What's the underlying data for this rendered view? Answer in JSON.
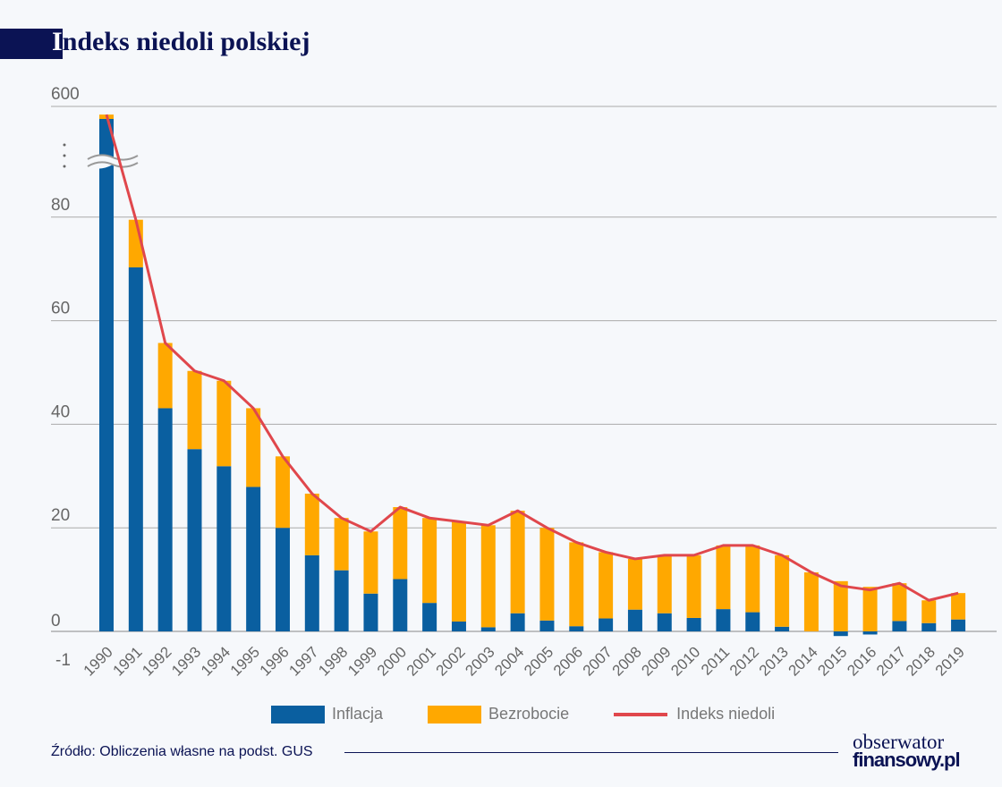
{
  "title_first": "I",
  "title_rest": "ndeks niedoli polskiej",
  "chart_data": {
    "type": "bar",
    "title": "Indeks niedoli polskiej",
    "stacked": true,
    "y_ticks": [
      "600",
      "80",
      "60",
      "40",
      "20",
      "0",
      "-1"
    ],
    "y_break": "between 80 and 600",
    "categories": [
      "1990",
      "1991",
      "1992",
      "1993",
      "1994",
      "1995",
      "1996",
      "1997",
      "1998",
      "1999",
      "2000",
      "2001",
      "2002",
      "2003",
      "2004",
      "2005",
      "2006",
      "2007",
      "2008",
      "2009",
      "2010",
      "2011",
      "2012",
      "2013",
      "2014",
      "2015",
      "2016",
      "2017",
      "2018",
      "2019"
    ],
    "series": [
      {
        "name": "Inflacja",
        "type": "bar",
        "color": "#0a5fa0",
        "values": [
          585.8,
          70.3,
          43.1,
          35.2,
          31.9,
          27.9,
          20.0,
          14.7,
          11.8,
          7.3,
          10.1,
          5.5,
          1.9,
          0.8,
          3.5,
          2.1,
          1.0,
          2.5,
          4.2,
          3.5,
          2.6,
          4.3,
          3.7,
          0.9,
          0.0,
          -0.9,
          -0.6,
          2.0,
          1.6,
          2.3
        ]
      },
      {
        "name": "Bezrobocie",
        "type": "bar",
        "color": "#ffa800",
        "values": [
          6.5,
          9.2,
          12.6,
          15.1,
          16.5,
          15.2,
          13.8,
          11.9,
          10.1,
          12.0,
          13.9,
          16.4,
          19.3,
          19.7,
          19.8,
          17.9,
          16.2,
          12.8,
          9.8,
          11.2,
          12.1,
          12.3,
          12.9,
          13.8,
          11.4,
          9.7,
          8.6,
          7.3,
          4.4,
          5.1
        ]
      },
      {
        "name": "Indeks niedoli",
        "type": "line",
        "color": "#e0474c",
        "values": [
          592.3,
          79.5,
          55.7,
          50.3,
          48.4,
          43.1,
          33.8,
          26.6,
          21.9,
          19.3,
          24.0,
          21.9,
          21.2,
          20.5,
          23.3,
          20.0,
          17.2,
          15.3,
          14.0,
          14.7,
          14.7,
          16.6,
          16.6,
          14.7,
          11.4,
          8.8,
          8.0,
          9.3,
          6.0,
          7.4
        ]
      }
    ],
    "grid": true,
    "legend": "bottom"
  },
  "legend": {
    "inflation": "Inflacja",
    "unemployment": "Bezrobocie",
    "index": "Indeks niedoli"
  },
  "source": "Źródło: Obliczenia własne na podst. GUS",
  "logo": {
    "line1": "obserwator",
    "line2": "finansowy.pl"
  }
}
